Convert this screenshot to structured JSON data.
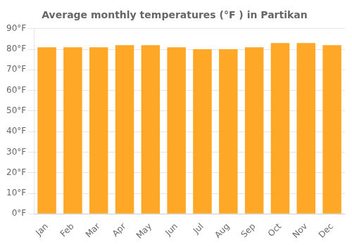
{
  "chart_data": {
    "type": "bar",
    "title": "Average monthly temperatures (°F ) in Partikan",
    "categories": [
      "Jan",
      "Feb",
      "Mar",
      "Apr",
      "May",
      "Jun",
      "Jul",
      "Aug",
      "Sep",
      "Oct",
      "Nov",
      "Dec"
    ],
    "values": [
      81,
      81,
      81,
      82,
      82,
      81,
      80,
      80,
      81,
      83,
      83,
      82
    ],
    "color": "#FFA726",
    "ylim": [
      0,
      90
    ],
    "yticks": [
      {
        "value": 0,
        "label": "0°F"
      },
      {
        "value": 10,
        "label": "10°F"
      },
      {
        "value": 20,
        "label": "20°F"
      },
      {
        "value": 30,
        "label": "30°F"
      },
      {
        "value": 40,
        "label": "40°F"
      },
      {
        "value": 50,
        "label": "50°F"
      },
      {
        "value": 60,
        "label": "60°F"
      },
      {
        "value": 70,
        "label": "70°F"
      },
      {
        "value": 80,
        "label": "80°F"
      },
      {
        "value": 90,
        "label": "90°F"
      }
    ],
    "grid": true
  }
}
